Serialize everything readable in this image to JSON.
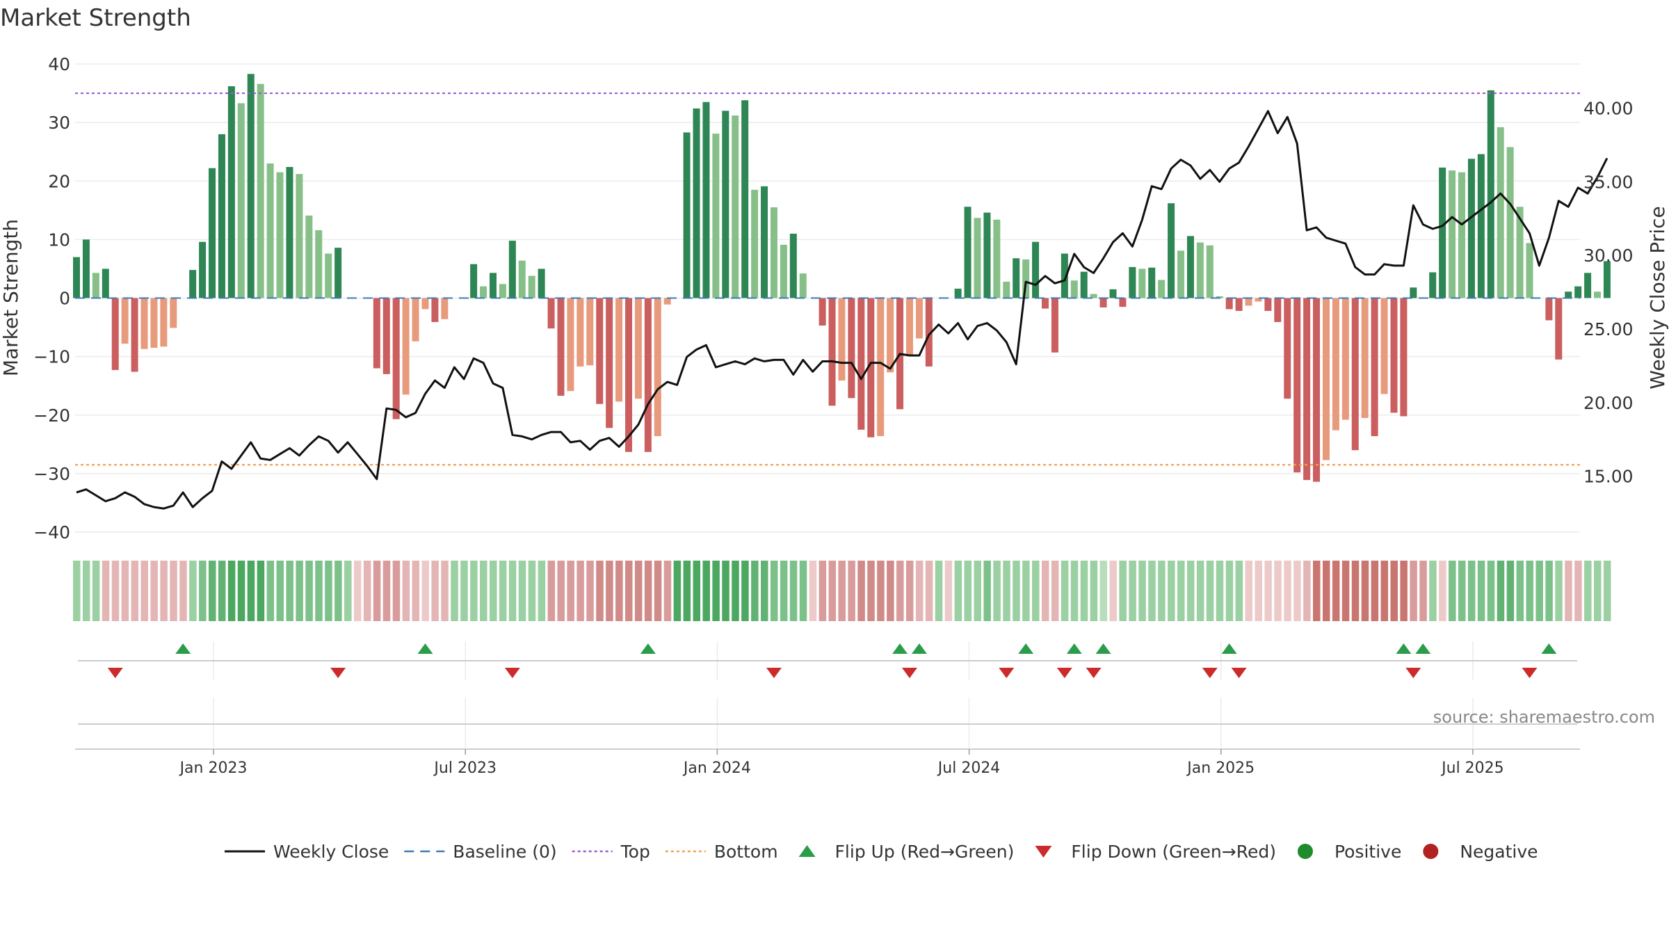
{
  "chart_data": {
    "type": "bar+line",
    "title": "Market Strength",
    "ylabel_left": "Market Strength",
    "ylabel_right": "Weekly Close Price",
    "source": "source: sharemaestro.com",
    "left_ylim": [
      -40,
      40
    ],
    "left_yticks": [
      40,
      30,
      20,
      10,
      0,
      -10,
      -20,
      -30,
      -40
    ],
    "left_ytick_labels": [
      "40",
      "30",
      "20",
      "10",
      "0",
      "−10",
      "−20",
      "−30",
      "−40"
    ],
    "right_ylim": [
      11.2,
      43.0
    ],
    "right_yticks": [
      40,
      35,
      30,
      25,
      20,
      15
    ],
    "right_ytick_labels": [
      "40.00",
      "35.00",
      "30.00",
      "25.00",
      "20.00",
      "15.00"
    ],
    "top_line": 35,
    "bottom_line": -28.5,
    "x_ticks": [
      {
        "label": "Jan 2023",
        "week": 14
      },
      {
        "label": "Jul 2023",
        "week": 40
      },
      {
        "label": "Jan 2024",
        "week": 66
      },
      {
        "label": "Jul 2024",
        "week": 92
      },
      {
        "label": "Jan 2025",
        "week": 118
      },
      {
        "label": "Jul 2025",
        "week": 144
      }
    ],
    "series": [
      {
        "name": "Market Strength",
        "values": [
          7,
          10,
          4.3,
          5,
          -12.3,
          -7.8,
          -12.6,
          -8.7,
          -8.5,
          -8.3,
          -5.1,
          0,
          4.8,
          9.6,
          22.2,
          28,
          36.2,
          33.3,
          38.3,
          36.6,
          23,
          21.5,
          22.4,
          21.2,
          14.1,
          11.6,
          7.6,
          8.6,
          0,
          0,
          0,
          -12,
          -13,
          -20.7,
          -16.5,
          -7.4,
          -1.9,
          -4.1,
          -3.6,
          0,
          0,
          5.8,
          2,
          4.3,
          2.4,
          9.8,
          6.4,
          3.8,
          5,
          -5.2,
          -16.7,
          -15.9,
          -11.7,
          -11.5,
          -18.1,
          -22.2,
          -17.7,
          -26.3,
          -17.2,
          -26.3,
          -23.6,
          -1.1,
          0,
          28.3,
          32.4,
          33.5,
          28.1,
          32,
          31.2,
          33.8,
          18.5,
          19.1,
          15.5,
          9.1,
          11,
          4.2,
          0,
          -4.7,
          -18.4,
          -14.1,
          -17.1,
          -22.5,
          -23.8,
          -23.6,
          -12.7,
          -19,
          -9.7,
          -6.9,
          -11.7,
          0,
          0,
          1.6,
          15.6,
          13.7,
          14.6,
          13.4,
          2.8,
          6.8,
          6.6,
          9.6,
          -1.8,
          -9.3,
          7.6,
          3,
          4.5,
          0.7,
          -1.6,
          1.5,
          -1.5,
          5.3,
          5,
          5.2,
          3.1,
          16.2,
          8.1,
          10.6,
          9.5,
          9,
          0.3,
          -1.9,
          -2.2,
          -1.3,
          -0.6,
          -2.2,
          -4.1,
          -17.2,
          -29.8,
          -31.1,
          -31.4,
          -27.7,
          -22.6,
          -20.8,
          -26,
          -20.5,
          -23.6,
          -16.4,
          -19.6,
          -20.2,
          1.8,
          0,
          4.4,
          22.3,
          21.8,
          21.5,
          23.8,
          24.6,
          35.5,
          29.2,
          25.8,
          15.6,
          9.4,
          0,
          -3.8,
          -10.5,
          1.1,
          2,
          4.3,
          1.1,
          6.3
        ]
      },
      {
        "name": "Weekly Close",
        "values": [
          13.9,
          14.1,
          13.7,
          13.3,
          13.5,
          13.9,
          13.6,
          13.1,
          12.9,
          12.8,
          13,
          13.9,
          12.9,
          13.5,
          14,
          16,
          15.5,
          16.4,
          17.3,
          16.2,
          16.1,
          16.5,
          16.9,
          16.4,
          17.1,
          17.7,
          17.4,
          16.6,
          17.3,
          16.5,
          15.7,
          14.8,
          19.6,
          19.5,
          19,
          19.3,
          20.6,
          21.5,
          21,
          22.4,
          21.6,
          23,
          22.7,
          21.3,
          21,
          17.8,
          17.7,
          17.5,
          17.8,
          18,
          18,
          17.3,
          17.4,
          16.8,
          17.4,
          17.6,
          17,
          17.7,
          18.5,
          19.9,
          20.9,
          21.4,
          21.2,
          23.1,
          23.6,
          23.9,
          22.4,
          22.6,
          22.8,
          22.6,
          23,
          22.8,
          22.9,
          22.9,
          21.9,
          22.9,
          22.1,
          22.8,
          22.8,
          22.7,
          22.7,
          21.6,
          22.7,
          22.7,
          22.3,
          23.3,
          23.2,
          23.2,
          24.6,
          25.3,
          24.7,
          25.4,
          24.3,
          25.2,
          25.4,
          24.9,
          24.1,
          22.6,
          28.2,
          28,
          28.6,
          28.1,
          28.3,
          30.1,
          29.2,
          28.8,
          29.8,
          30.9,
          31.5,
          30.6,
          32.4,
          34.7,
          34.5,
          35.9,
          36.5,
          36.1,
          35.2,
          35.8,
          35,
          35.9,
          36.3,
          37.4,
          38.6,
          39.8,
          38.3,
          39.4,
          37.6,
          31.7,
          31.9,
          31.2,
          31,
          30.8,
          29.2,
          28.7,
          28.7,
          29.4,
          29.3,
          29.3,
          33.4,
          32.1,
          31.8,
          32,
          32.6,
          32.1,
          32.6,
          33.1,
          33.6,
          34.2,
          33.5,
          32.5,
          31.5,
          29.3,
          31.2,
          33.7,
          33.3,
          34.6,
          34.2,
          35.3,
          36.6
        ]
      },
      {
        "name": "Regime Strip",
        "values": [
          3,
          3,
          3,
          -3,
          -3,
          -3,
          -3,
          -3,
          -3,
          -3,
          -3,
          -3,
          3,
          4,
          5,
          5,
          6,
          6,
          6,
          6,
          4,
          4,
          4,
          4,
          4,
          4,
          4,
          4,
          3,
          -2,
          -3,
          -4,
          -4,
          -4,
          -3,
          -3,
          -2,
          -3,
          -3,
          3,
          3,
          3,
          3,
          3,
          3,
          3,
          3,
          3,
          3,
          -4,
          -4,
          -4,
          -4,
          -4,
          -5,
          -5,
          -5,
          -5,
          -5,
          -5,
          -5,
          -4,
          6,
          6,
          6,
          6,
          6,
          6,
          6,
          6,
          5,
          5,
          4,
          4,
          4,
          4,
          -2,
          -4,
          -4,
          -4,
          -4,
          -5,
          -5,
          -5,
          -5,
          -4,
          -4,
          -3,
          -3,
          3,
          -2,
          3,
          3,
          3,
          4,
          3,
          3,
          3,
          3,
          3,
          -3,
          -3,
          3,
          3,
          3,
          3,
          2,
          -2,
          3,
          3,
          3,
          3,
          3,
          3,
          3,
          3,
          3,
          3,
          3,
          3,
          3,
          -2,
          -2,
          -2,
          -2,
          -2,
          -2,
          -3,
          -6,
          -6,
          -6,
          -6,
          -6,
          -6,
          -6,
          -6,
          -6,
          -6,
          -4,
          -4,
          3,
          -2,
          4,
          4,
          4,
          4,
          4,
          5,
          5,
          4,
          4,
          4,
          4,
          3,
          -3,
          -3,
          3,
          3,
          3,
          3,
          3,
          3
        ]
      }
    ],
    "flip_up_weeks": [
      11,
      36,
      59,
      85,
      87,
      98,
      103,
      106,
      119,
      137,
      139,
      152
    ],
    "flip_down_weeks": [
      4,
      27,
      45,
      72,
      86,
      96,
      102,
      105,
      117,
      120,
      138,
      150
    ],
    "legend": {
      "position": "bottom-center",
      "entries": [
        {
          "label": "Weekly Close",
          "kind": "line-solid",
          "color": "#111111"
        },
        {
          "label": "Baseline (0)",
          "kind": "line-dashed",
          "color": "#3b7ab7"
        },
        {
          "label": "Top",
          "kind": "line-dotted",
          "color": "#9b59d0"
        },
        {
          "label": "Bottom",
          "kind": "line-dotted",
          "color": "#f0a050"
        },
        {
          "label": "Flip Up (Red→Green)",
          "kind": "triangle-up",
          "color": "#2a9d4a"
        },
        {
          "label": "Flip Down (Green→Red)",
          "kind": "triangle-down",
          "color": "#cc2b2b"
        },
        {
          "label": "Positive",
          "kind": "circle",
          "color": "#1f8b2c"
        },
        {
          "label": "Negative",
          "kind": "circle",
          "color": "#b22222"
        }
      ]
    },
    "colors": {
      "pos_strong": "#2e8654",
      "pos_weak": "#86c088",
      "neg_strong": "#cb5e5e",
      "neg_weak": "#e89a7c",
      "price_line": "#111111",
      "baseline": "#3b7ab7",
      "top": "#9b59d0",
      "bottom": "#f0a050",
      "flip_up": "#2a9d4a",
      "flip_down": "#cc2b2b",
      "grid": "#ebebeb"
    }
  }
}
